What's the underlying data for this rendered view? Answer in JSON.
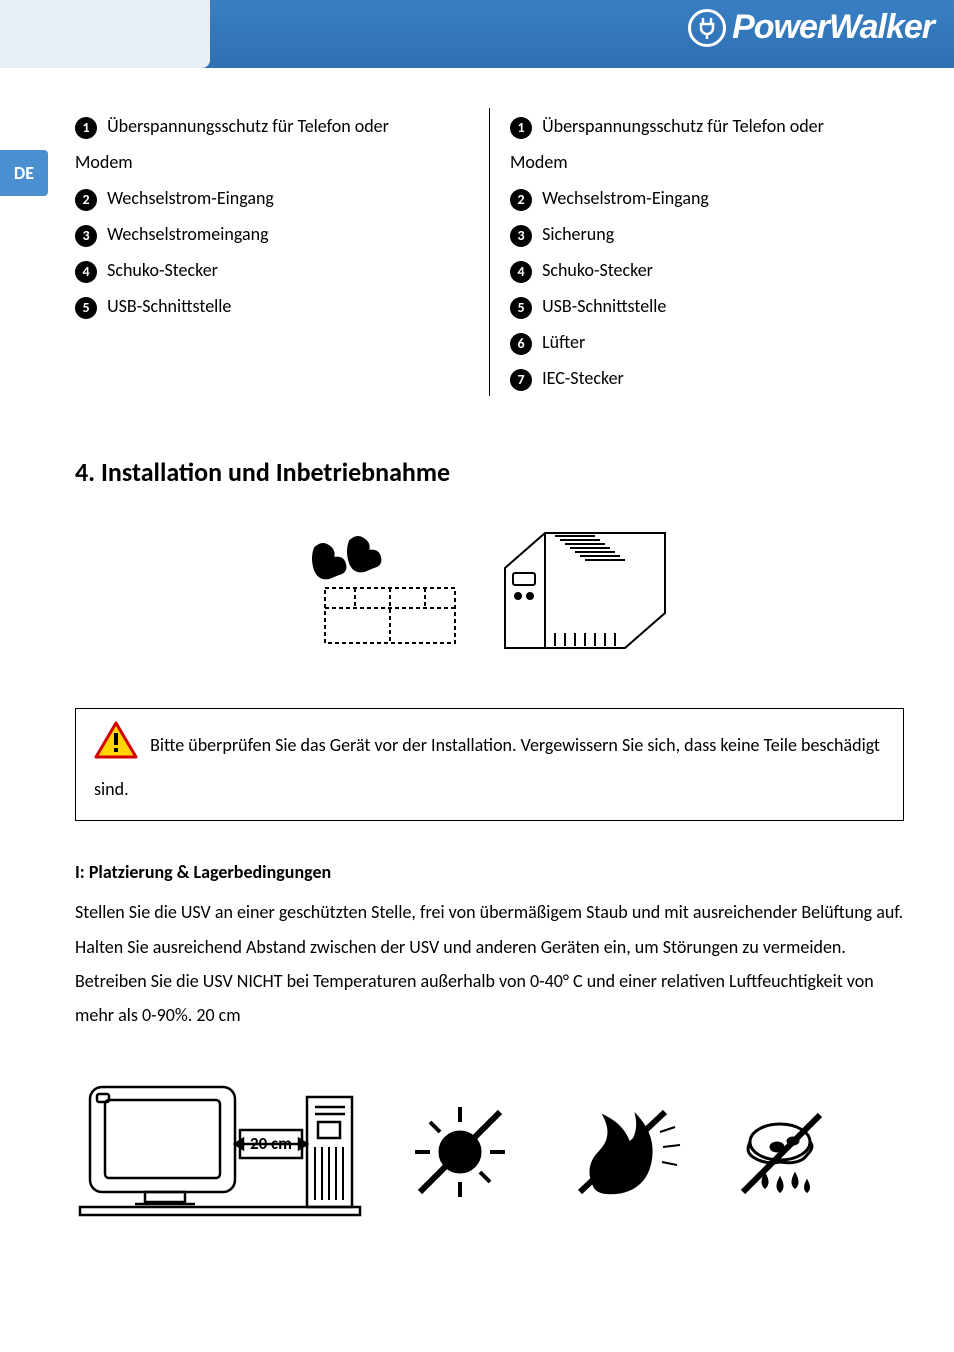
{
  "brand": "PowerWalker",
  "lang_tab": "DE",
  "left_list": [
    {
      "n": "1",
      "text": "Überspannungsschutz für Telefon oder Modem",
      "wrap": true
    },
    {
      "n": "2",
      "text": "Wechselstrom-Eingang"
    },
    {
      "n": "3",
      "text": "Wechselstromeingang"
    },
    {
      "n": "4",
      "text": "Schuko-Stecker"
    },
    {
      "n": "5",
      "text": "USB-Schnittstelle"
    }
  ],
  "right_list": [
    {
      "n": "1",
      "text": "Überspannungsschutz für Telefon oder Modem",
      "wrap": true
    },
    {
      "n": "2",
      "text": "Wechselstrom-Eingang"
    },
    {
      "n": "3",
      "text": "Sicherung"
    },
    {
      "n": "4",
      "text": "Schuko-Stecker"
    },
    {
      "n": "5",
      "text": "USB-Schnittstelle"
    },
    {
      "n": "6",
      "text": "Lüfter"
    },
    {
      "n": "7",
      "text": "IEC-Stecker"
    }
  ],
  "section_title": "4. Installation und Inbetriebnahme",
  "warning_text": "Bitte überprüfen Sie das Gerät vor der Installation. Vergewissern Sie sich, dass keine Teile beschädigt sind.",
  "sub_title": "I: Platzierung & Lagerbedingungen",
  "body_text": "Stellen Sie die USV an einer geschützten Stelle, frei von übermäßigem Staub und mit ausreichender Belüftung auf. Halten Sie ausreichend Abstand zwischen der USV und anderen Geräten ein, um Störungen zu vermeiden. Betreiben Sie die USV NICHT bei Temperaturen außerhalb von 0-40° C und einer relativen Luftfeuchtigkeit von mehr als 0-90%. 20 cm",
  "distance_label": "20 cm",
  "colors": {
    "header_gradient_top": "#3a7fc4",
    "header_gradient_bottom": "#2e6fb3",
    "header_tab_bg": "#e8eef5",
    "lang_tab_bg": "#4a8fd0",
    "warning_fill": "#ffd400",
    "warning_stroke": "#d40000",
    "text": "#000000"
  }
}
